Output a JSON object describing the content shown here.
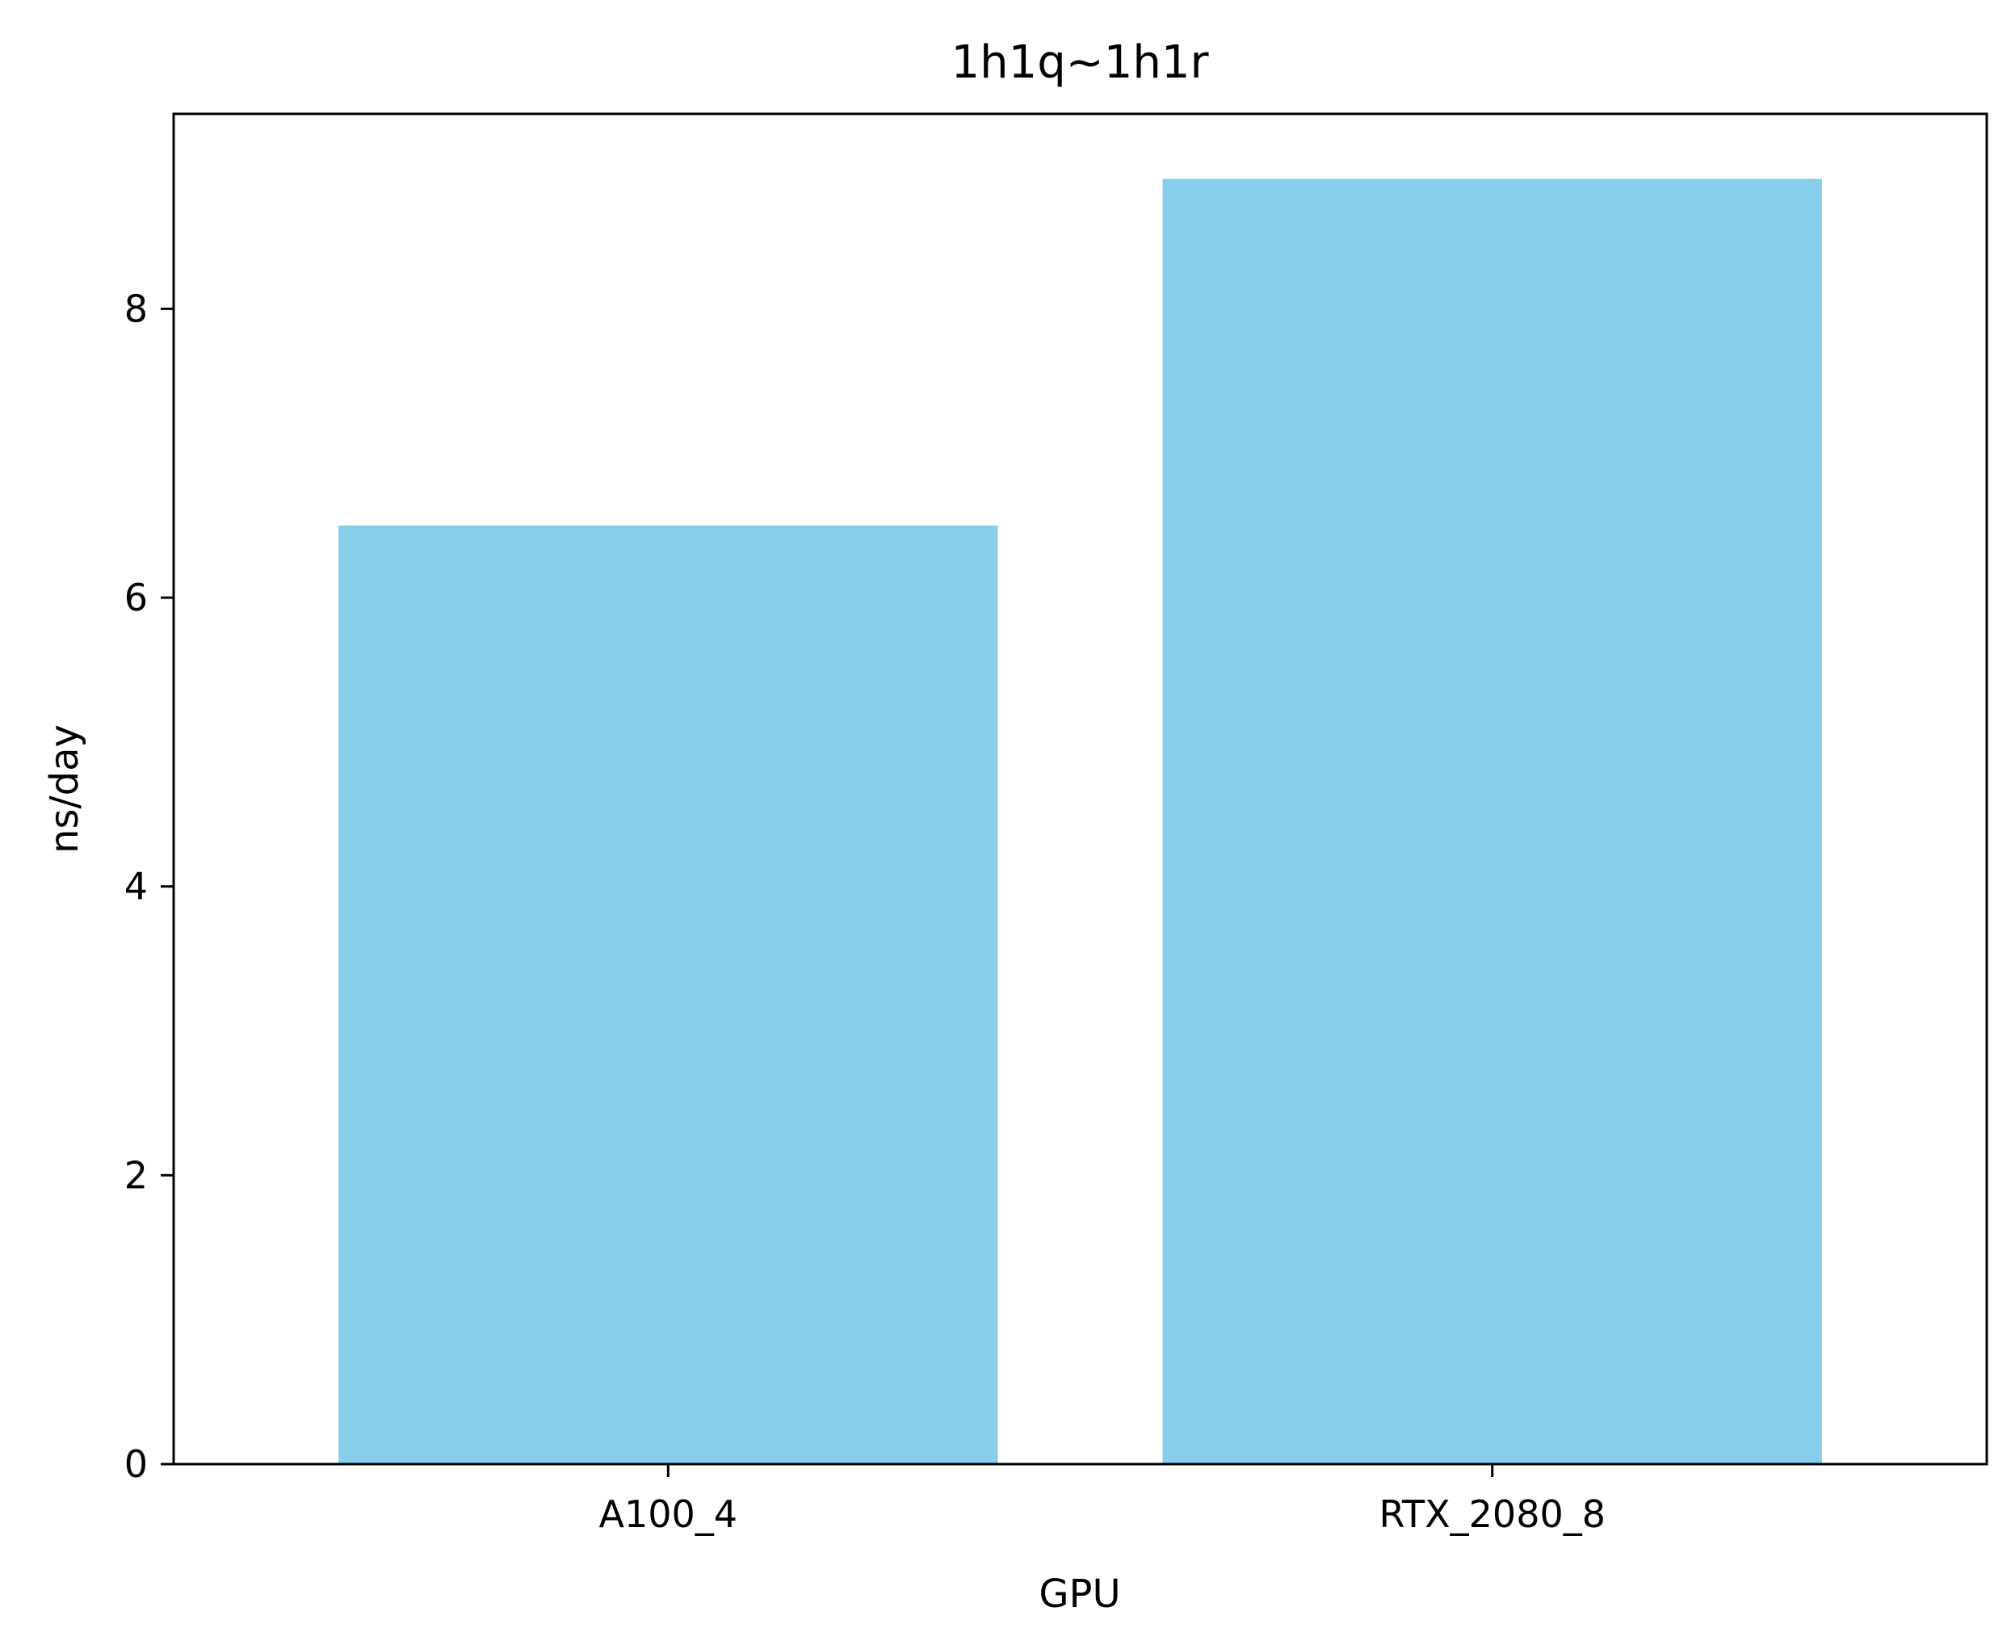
{
  "chart_data": {
    "type": "bar",
    "title": "1h1q~1h1r",
    "xlabel": "GPU",
    "ylabel": "ns/day",
    "categories": [
      "A100_4",
      "RTX_2080_8"
    ],
    "values": [
      6.5,
      8.9
    ],
    "ylim": [
      0,
      9.35
    ],
    "yticks": [
      0,
      2,
      4,
      6,
      8
    ],
    "bar_color": "#87CEEB",
    "grid": false,
    "legend": "none"
  }
}
